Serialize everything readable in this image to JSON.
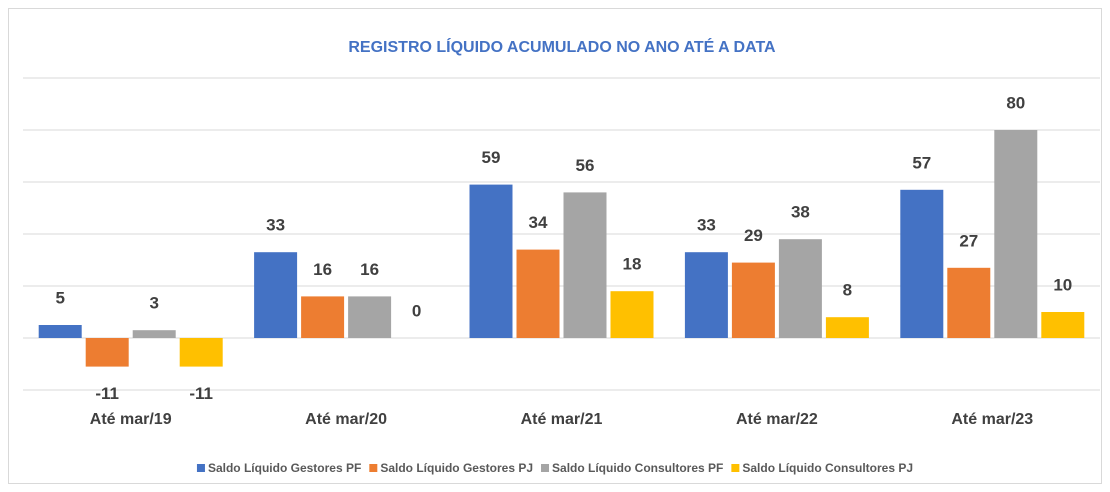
{
  "chart_data": {
    "type": "bar",
    "title": "REGISTRO LÍQUIDO ACUMULADO NO ANO ATÉ A DATA",
    "categories": [
      "Até mar/19",
      "Até mar/20",
      "Até mar/21",
      "Até mar/22",
      "Até mar/23"
    ],
    "series": [
      {
        "name": "Saldo Líquido Gestores PF",
        "color": "#4472c4",
        "values": [
          5,
          33,
          59,
          33,
          57
        ]
      },
      {
        "name": "Saldo Líquido Gestores PJ",
        "color": "#ed7d31",
        "values": [
          -11,
          16,
          34,
          29,
          27
        ]
      },
      {
        "name": "Saldo Líquido Consultores PF",
        "color": "#a5a5a5",
        "values": [
          3,
          16,
          56,
          38,
          80
        ]
      },
      {
        "name": "Saldo Líquido Consultores PJ",
        "color": "#ffc000",
        "values": [
          -11,
          0,
          18,
          8,
          10
        ]
      }
    ],
    "ylim": [
      -20,
      100
    ],
    "yticks": [
      -20,
      0,
      20,
      40,
      60,
      80,
      100
    ],
    "grid": true,
    "legend": "bottom"
  }
}
